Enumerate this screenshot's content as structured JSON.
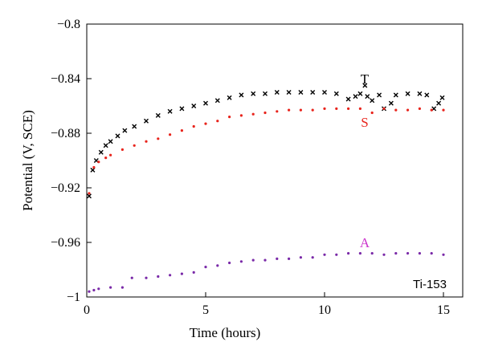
{
  "chart_data": {
    "type": "scatter",
    "title": "",
    "xlabel": "Time (hours)",
    "ylabel": "Potential (V, SCE)",
    "xlim": [
      0,
      16
    ],
    "ylim": [
      -1.0,
      -0.8
    ],
    "x_ticks": [
      0,
      5,
      10,
      15
    ],
    "x_tick_labels": [
      "0",
      "5",
      "10",
      "15"
    ],
    "y_ticks": [
      -1.0,
      -0.96,
      -0.92,
      -0.88,
      -0.84,
      -0.8
    ],
    "y_tick_labels": [
      "-1",
      "-0.96",
      "-0.92",
      "-0.88",
      "-0.84",
      "-0.8"
    ],
    "grid": false,
    "legend": "none",
    "annotation": "Ti-153",
    "series": [
      {
        "name": "T",
        "marker": "x",
        "color": "#000000",
        "x": [
          0.1,
          0.25,
          0.4,
          0.6,
          0.8,
          1.0,
          1.3,
          1.6,
          2.0,
          2.5,
          3.0,
          3.5,
          4.0,
          4.5,
          5.0,
          5.5,
          6.0,
          6.5,
          7.0,
          7.5,
          8.0,
          8.5,
          9.0,
          9.5,
          10.0,
          10.5,
          11.0,
          11.3,
          11.5,
          11.7,
          11.8,
          12.0,
          12.3,
          12.5,
          12.8,
          13.0,
          13.5,
          14.0,
          14.3,
          14.6,
          14.8,
          14.95
        ],
        "y": [
          -0.926,
          -0.907,
          -0.9,
          -0.894,
          -0.889,
          -0.886,
          -0.882,
          -0.878,
          -0.875,
          -0.871,
          -0.867,
          -0.864,
          -0.862,
          -0.86,
          -0.858,
          -0.856,
          -0.854,
          -0.852,
          -0.851,
          -0.851,
          -0.85,
          -0.85,
          -0.85,
          -0.85,
          -0.85,
          -0.851,
          -0.855,
          -0.853,
          -0.851,
          -0.845,
          -0.853,
          -0.856,
          -0.852,
          -0.862,
          -0.858,
          -0.852,
          -0.851,
          -0.851,
          -0.852,
          -0.862,
          -0.858,
          -0.854
        ]
      },
      {
        "name": "S",
        "marker": "dot",
        "color": "#e8241c",
        "x": [
          0.1,
          0.3,
          0.5,
          0.8,
          1.0,
          1.5,
          2.0,
          2.5,
          3.0,
          3.5,
          4.0,
          4.5,
          5.0,
          5.5,
          6.0,
          6.5,
          7.0,
          7.5,
          8.0,
          8.5,
          9.0,
          9.5,
          10.0,
          10.5,
          11.0,
          11.5,
          12.0,
          12.5,
          13.0,
          13.5,
          14.0,
          14.5,
          15.0
        ],
        "y": [
          -0.924,
          -0.905,
          -0.901,
          -0.898,
          -0.896,
          -0.892,
          -0.889,
          -0.886,
          -0.884,
          -0.881,
          -0.878,
          -0.875,
          -0.873,
          -0.871,
          -0.868,
          -0.867,
          -0.866,
          -0.865,
          -0.864,
          -0.863,
          -0.863,
          -0.863,
          -0.862,
          -0.862,
          -0.862,
          -0.862,
          -0.865,
          -0.862,
          -0.863,
          -0.863,
          -0.862,
          -0.863,
          -0.863
        ]
      },
      {
        "name": "A",
        "marker": "dot",
        "color": "#7a2aa8",
        "x": [
          0.1,
          0.3,
          0.5,
          1.0,
          1.5,
          1.9,
          2.5,
          3.0,
          3.5,
          4.0,
          4.5,
          5.0,
          5.5,
          6.0,
          6.5,
          7.0,
          7.5,
          8.0,
          8.5,
          9.0,
          9.5,
          10.0,
          10.5,
          11.0,
          11.5,
          12.0,
          12.5,
          13.0,
          13.5,
          14.0,
          14.5,
          15.0
        ],
        "y": [
          -0.996,
          -0.995,
          -0.994,
          -0.993,
          -0.993,
          -0.986,
          -0.986,
          -0.985,
          -0.984,
          -0.983,
          -0.982,
          -0.978,
          -0.977,
          -0.975,
          -0.974,
          -0.973,
          -0.973,
          -0.972,
          -0.972,
          -0.971,
          -0.971,
          -0.969,
          -0.969,
          -0.968,
          -0.968,
          -0.968,
          -0.969,
          -0.968,
          -0.968,
          -0.968,
          -0.968,
          -0.969
        ]
      }
    ]
  }
}
